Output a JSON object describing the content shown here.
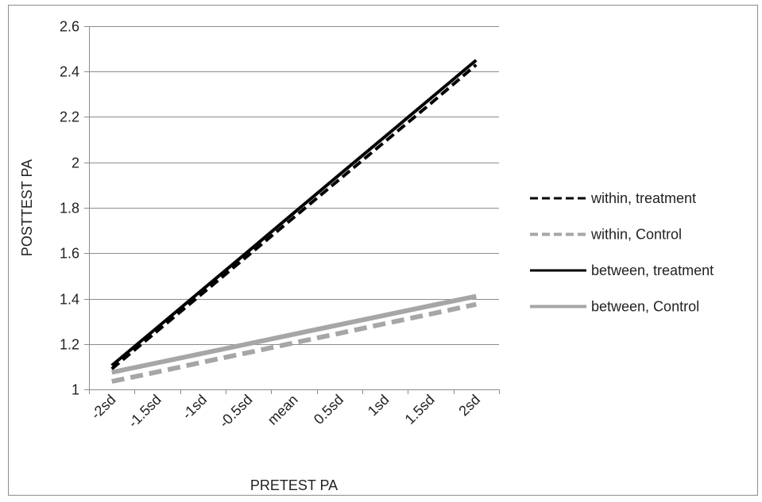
{
  "chart_data": {
    "type": "line",
    "title": "",
    "xlabel": "PRETEST PA",
    "ylabel": "POSTTEST PA",
    "categories": [
      "-2sd",
      "-1.5sd",
      "-1sd",
      "-0.5sd",
      "mean",
      "0.5sd",
      "1sd",
      "1.5sd",
      "2sd"
    ],
    "ylim": [
      1,
      2.6
    ],
    "yticks": [
      "1",
      "1.2",
      "1.4",
      "1.6",
      "1.8",
      "2",
      "2.2",
      "2.4",
      "2.6"
    ],
    "grid": true,
    "legend_position": "right",
    "series": [
      {
        "name": "within, treatment",
        "color": "#000000",
        "style": "dashed",
        "values": [
          1.09,
          1.257,
          1.424,
          1.591,
          1.758,
          1.925,
          2.092,
          2.259,
          2.43
        ]
      },
      {
        "name": "within, Control",
        "color": "#a6a6a6",
        "style": "dashed",
        "values": [
          1.035,
          1.077,
          1.12,
          1.162,
          1.205,
          1.247,
          1.29,
          1.332,
          1.375
        ]
      },
      {
        "name": "between, treatment",
        "color": "#000000",
        "style": "solid",
        "values": [
          1.105,
          1.273,
          1.441,
          1.609,
          1.778,
          1.946,
          2.114,
          2.282,
          2.45
        ]
      },
      {
        "name": "between, Control",
        "color": "#a6a6a6",
        "style": "solid",
        "values": [
          1.075,
          1.117,
          1.159,
          1.201,
          1.243,
          1.285,
          1.327,
          1.369,
          1.41
        ]
      }
    ]
  }
}
